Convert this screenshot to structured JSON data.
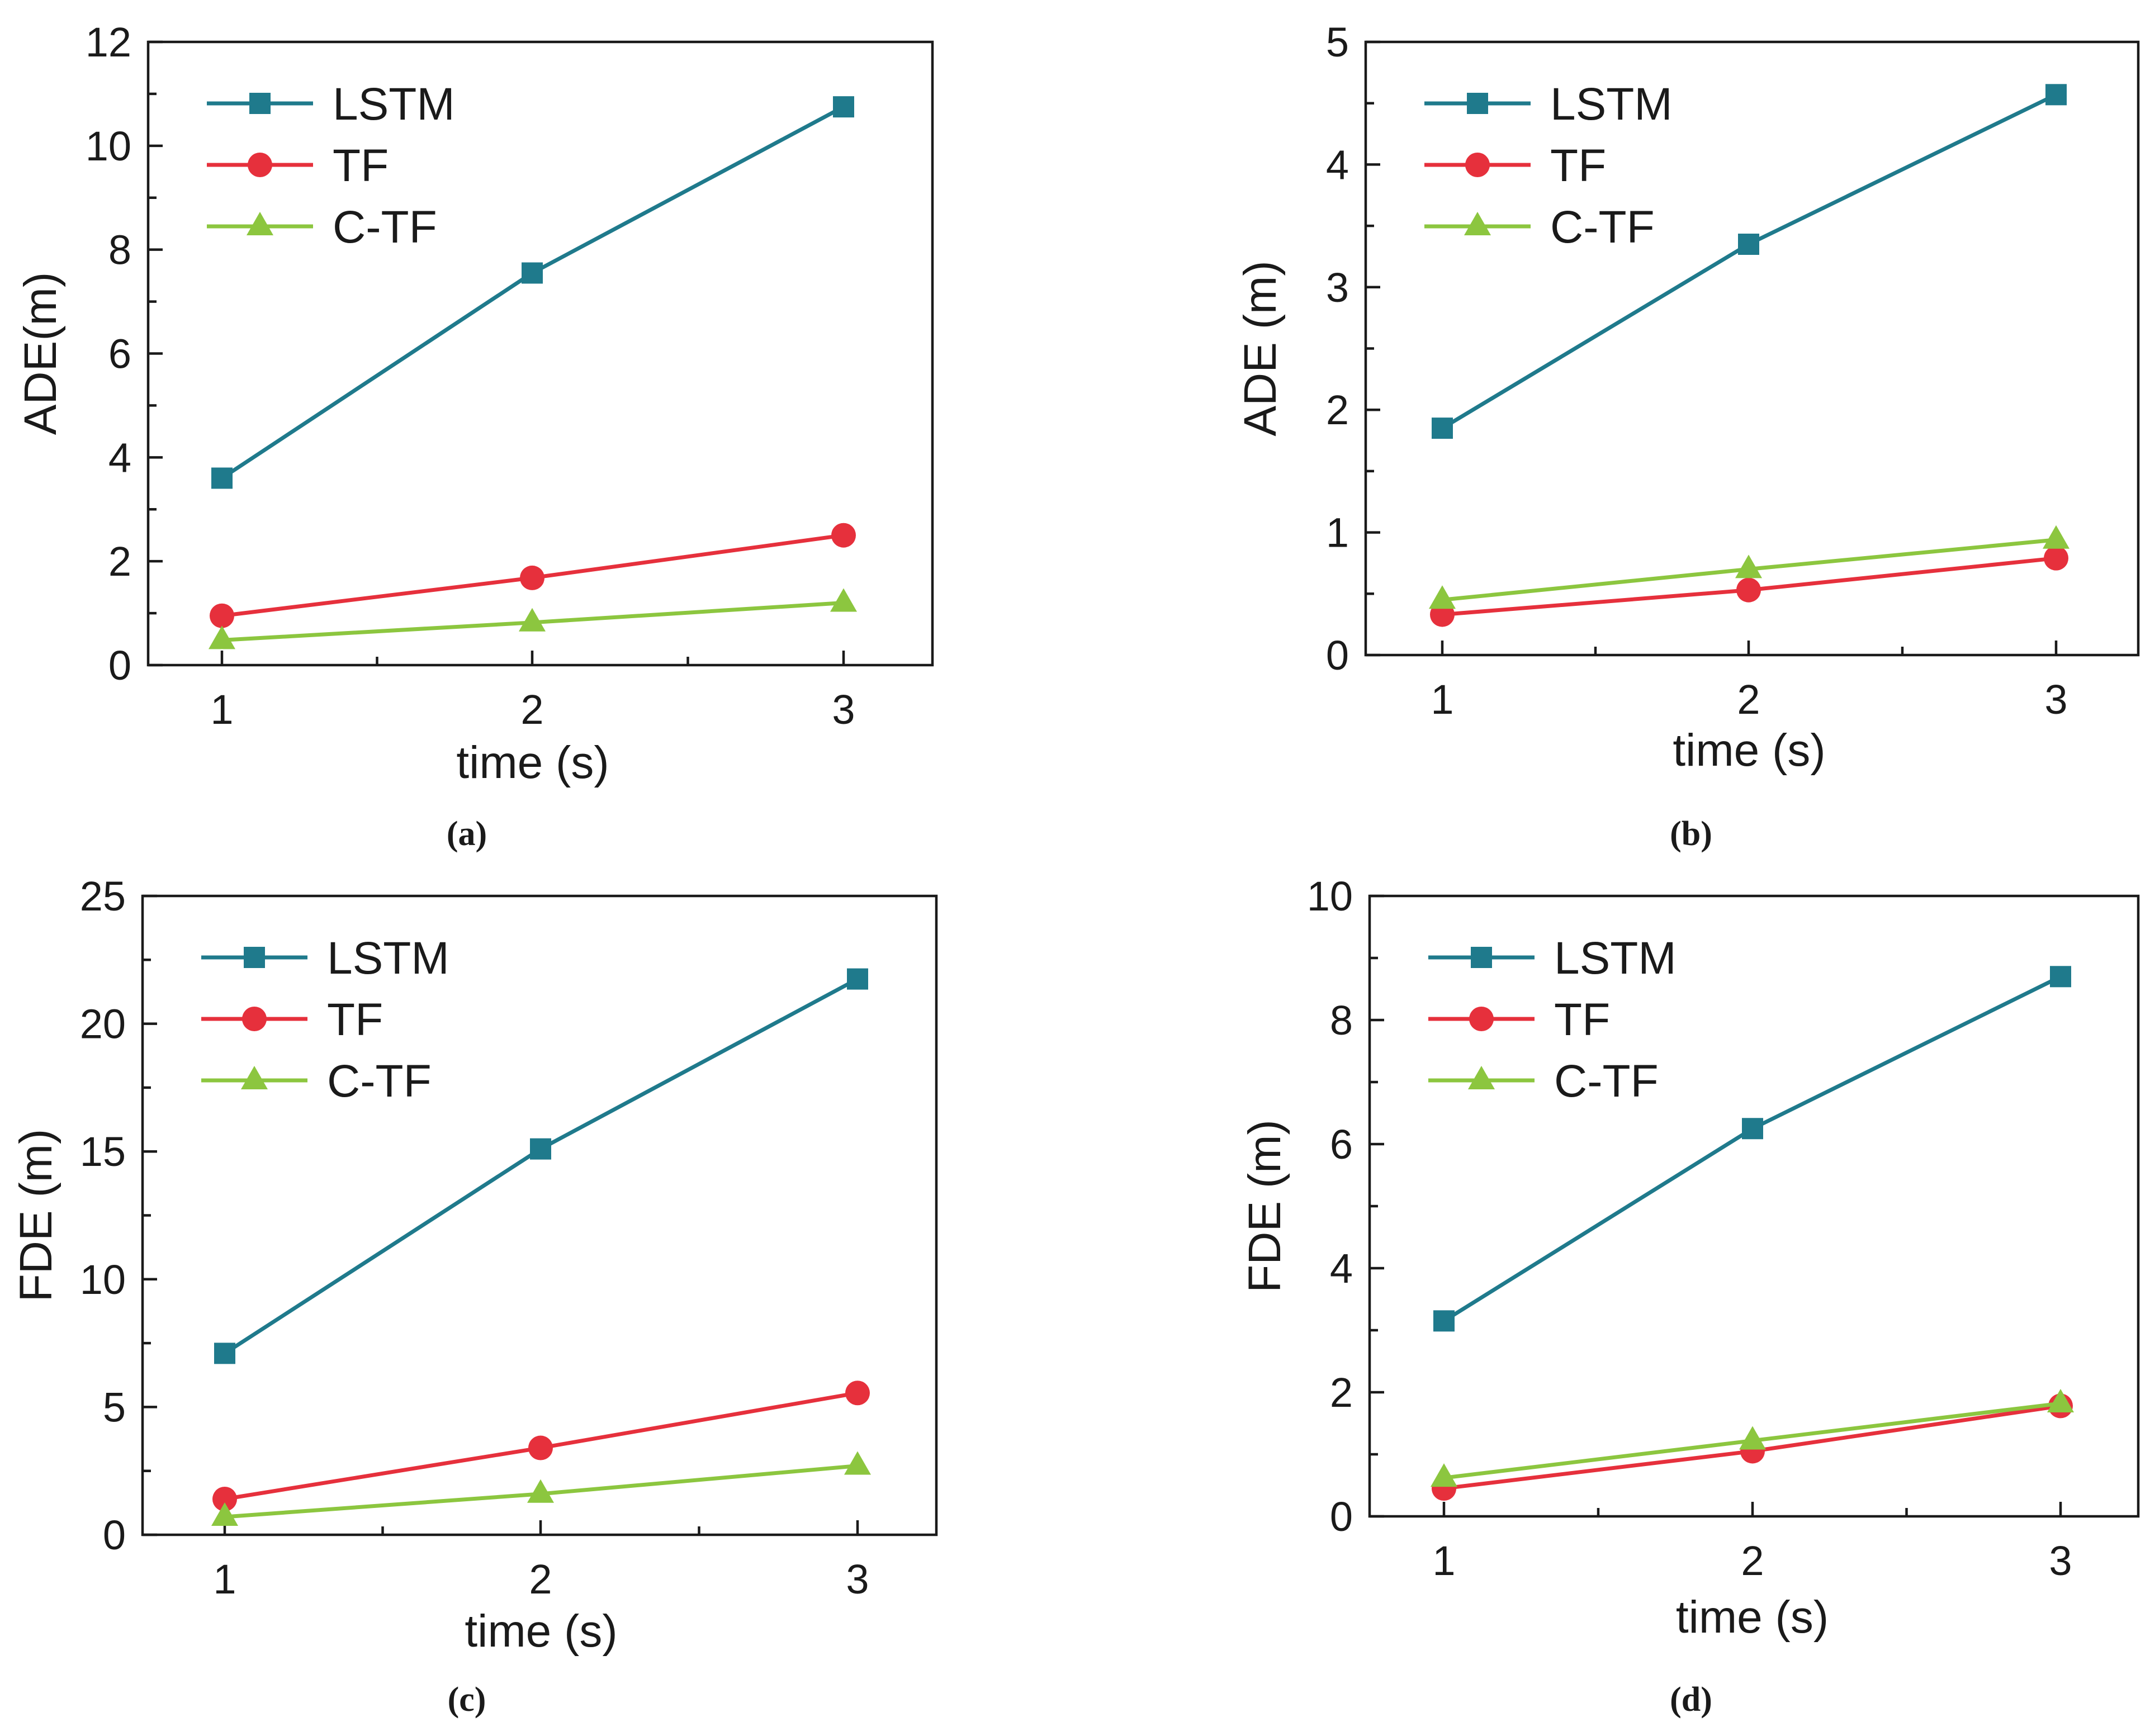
{
  "colors": {
    "LSTM": "#1f7a8c",
    "TF": "#e6303c",
    "C-TF": "#8cc63f"
  },
  "chart_data": [
    {
      "id": "a",
      "type": "line",
      "panel_label": "(a)",
      "xlabel": "time (s)",
      "ylabel": "ADE(m)",
      "x": [
        1,
        2,
        3
      ],
      "xticks": [
        "1",
        "2",
        "3"
      ],
      "ylim": [
        0,
        12
      ],
      "yticks": [
        "0",
        "2",
        "4",
        "6",
        "8",
        "10",
        "12"
      ],
      "grid": false,
      "legend": "top-left",
      "series": [
        {
          "name": "LSTM",
          "marker": "square",
          "values": [
            3.6,
            7.55,
            10.75
          ]
        },
        {
          "name": "TF",
          "marker": "circle",
          "values": [
            0.95,
            1.68,
            2.5
          ]
        },
        {
          "name": "C-TF",
          "marker": "triangle",
          "values": [
            0.48,
            0.82,
            1.2
          ]
        }
      ]
    },
    {
      "id": "b",
      "type": "line",
      "panel_label": "(b)",
      "xlabel": "time (s)",
      "ylabel": "ADE (m)",
      "x": [
        1,
        2,
        3
      ],
      "xticks": [
        "1",
        "2",
        "3"
      ],
      "ylim": [
        0,
        5
      ],
      "yticks": [
        "0",
        "1",
        "2",
        "3",
        "4",
        "5"
      ],
      "grid": false,
      "legend": "top-left",
      "series": [
        {
          "name": "LSTM",
          "marker": "square",
          "values": [
            1.85,
            3.35,
            4.57
          ]
        },
        {
          "name": "TF",
          "marker": "circle",
          "values": [
            0.33,
            0.53,
            0.79
          ]
        },
        {
          "name": "C-TF",
          "marker": "triangle",
          "values": [
            0.45,
            0.7,
            0.94
          ]
        }
      ]
    },
    {
      "id": "c",
      "type": "line",
      "panel_label": "(c)",
      "xlabel": "time (s)",
      "ylabel": "FDE (m)",
      "x": [
        1,
        2,
        3
      ],
      "xticks": [
        "1",
        "2",
        "3"
      ],
      "ylim": [
        0,
        25
      ],
      "yticks": [
        "0",
        "5",
        "10",
        "15",
        "20",
        "25"
      ],
      "grid": false,
      "legend": "top-left",
      "series": [
        {
          "name": "LSTM",
          "marker": "square",
          "values": [
            7.1,
            15.1,
            21.75
          ]
        },
        {
          "name": "TF",
          "marker": "circle",
          "values": [
            1.4,
            3.4,
            5.55
          ]
        },
        {
          "name": "C-TF",
          "marker": "triangle",
          "values": [
            0.7,
            1.6,
            2.7
          ]
        }
      ]
    },
    {
      "id": "d",
      "type": "line",
      "panel_label": "(d)",
      "xlabel": "time (s)",
      "ylabel": "FDE (m)",
      "x": [
        1,
        2,
        3
      ],
      "xticks": [
        "1",
        "2",
        "3"
      ],
      "ylim": [
        0,
        10
      ],
      "yticks": [
        "0",
        "2",
        "4",
        "6",
        "8",
        "10"
      ],
      "grid": false,
      "legend": "top-left",
      "series": [
        {
          "name": "LSTM",
          "marker": "square",
          "values": [
            3.15,
            6.25,
            8.7
          ]
        },
        {
          "name": "TF",
          "marker": "circle",
          "values": [
            0.45,
            1.05,
            1.78
          ]
        },
        {
          "name": "C-TF",
          "marker": "triangle",
          "values": [
            0.62,
            1.22,
            1.82
          ]
        }
      ]
    }
  ]
}
